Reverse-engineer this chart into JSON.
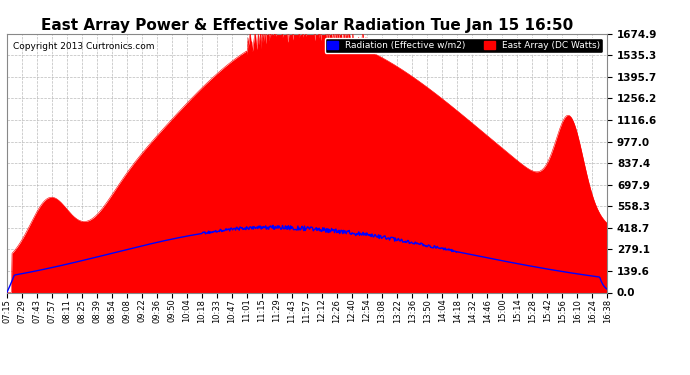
{
  "title": "East Array Power & Effective Solar Radiation Tue Jan 15 16:50",
  "copyright": "Copyright 2013 Curtronics.com",
  "legend_radiation": "Radiation (Effective w/m2)",
  "legend_east": "East Array (DC Watts)",
  "yticks": [
    0.0,
    139.6,
    279.1,
    418.7,
    558.3,
    697.9,
    837.4,
    977.0,
    1116.6,
    1256.2,
    1395.7,
    1535.3,
    1674.9
  ],
  "ymax": 1674.9,
  "background_color": "#ffffff",
  "plot_bg_color": "#ffffff",
  "grid_color": "#aaaaaa",
  "red_fill_color": "#ff0000",
  "blue_line_color": "#0000ff",
  "title_fontsize": 11,
  "xtick_labels": [
    "07:15",
    "07:29",
    "07:43",
    "07:57",
    "08:11",
    "08:25",
    "08:39",
    "08:54",
    "09:08",
    "09:22",
    "09:36",
    "09:50",
    "10:04",
    "10:18",
    "10:33",
    "10:47",
    "11:01",
    "11:15",
    "11:29",
    "11:43",
    "11:57",
    "12:12",
    "12:26",
    "12:40",
    "12:54",
    "13:08",
    "13:22",
    "13:36",
    "13:50",
    "14:04",
    "14:18",
    "14:32",
    "14:46",
    "15:00",
    "15:14",
    "15:28",
    "15:42",
    "15:56",
    "16:10",
    "16:24",
    "16:38"
  ]
}
